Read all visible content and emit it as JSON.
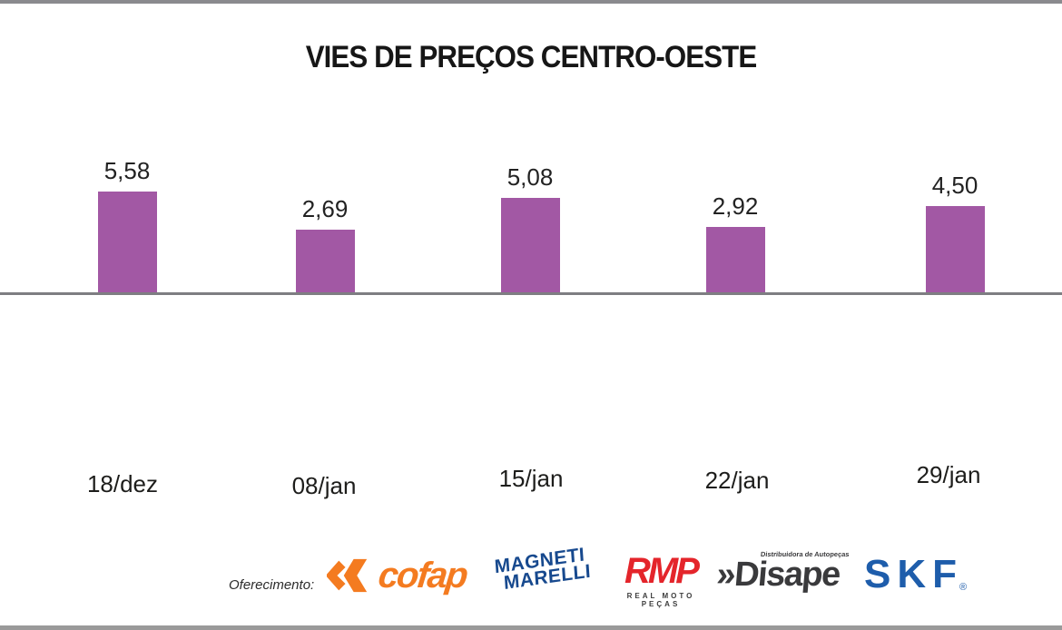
{
  "page": {
    "title": "VIES DE PREÇOS CENTRO-OESTE"
  },
  "chart_data": {
    "type": "bar",
    "title": "VIES DE PREÇOS CENTRO-OESTE",
    "categories": [
      "18/dez",
      "08/jan",
      "15/jan",
      "22/jan",
      "29/jan"
    ],
    "values": [
      5.58,
      2.69,
      5.08,
      2.92,
      4.5
    ],
    "value_labels": [
      "5,58",
      "2,69",
      "5,08",
      "2,92",
      "4,50"
    ],
    "xlabel": "",
    "ylabel": "",
    "bar_color": "#a258a4",
    "axis_line_color": "#7e7e82",
    "grid": false,
    "legend": "none",
    "value_label_position": "above-bar"
  },
  "footer": {
    "presented_by_label": "Oferecimento:",
    "sponsors": [
      {
        "name": "Cofap",
        "text": "cofap",
        "color": "#f47b20"
      },
      {
        "name": "Magneti Marelli",
        "line1": "MAGNETI",
        "line2": "MARELLI",
        "color": "#17498e"
      },
      {
        "name": "RMP",
        "text": "RMP",
        "subtext": "REAL MOTO PEÇAS",
        "color": "#e4252b"
      },
      {
        "name": "Disape",
        "prefix": "»",
        "text": "Disape",
        "subtext": "Distribuidora de Autopeças",
        "color": "#3a3a3c"
      },
      {
        "name": "SKF",
        "text": "SKF",
        "reg": "®",
        "color": "#1e5dab"
      }
    ]
  }
}
